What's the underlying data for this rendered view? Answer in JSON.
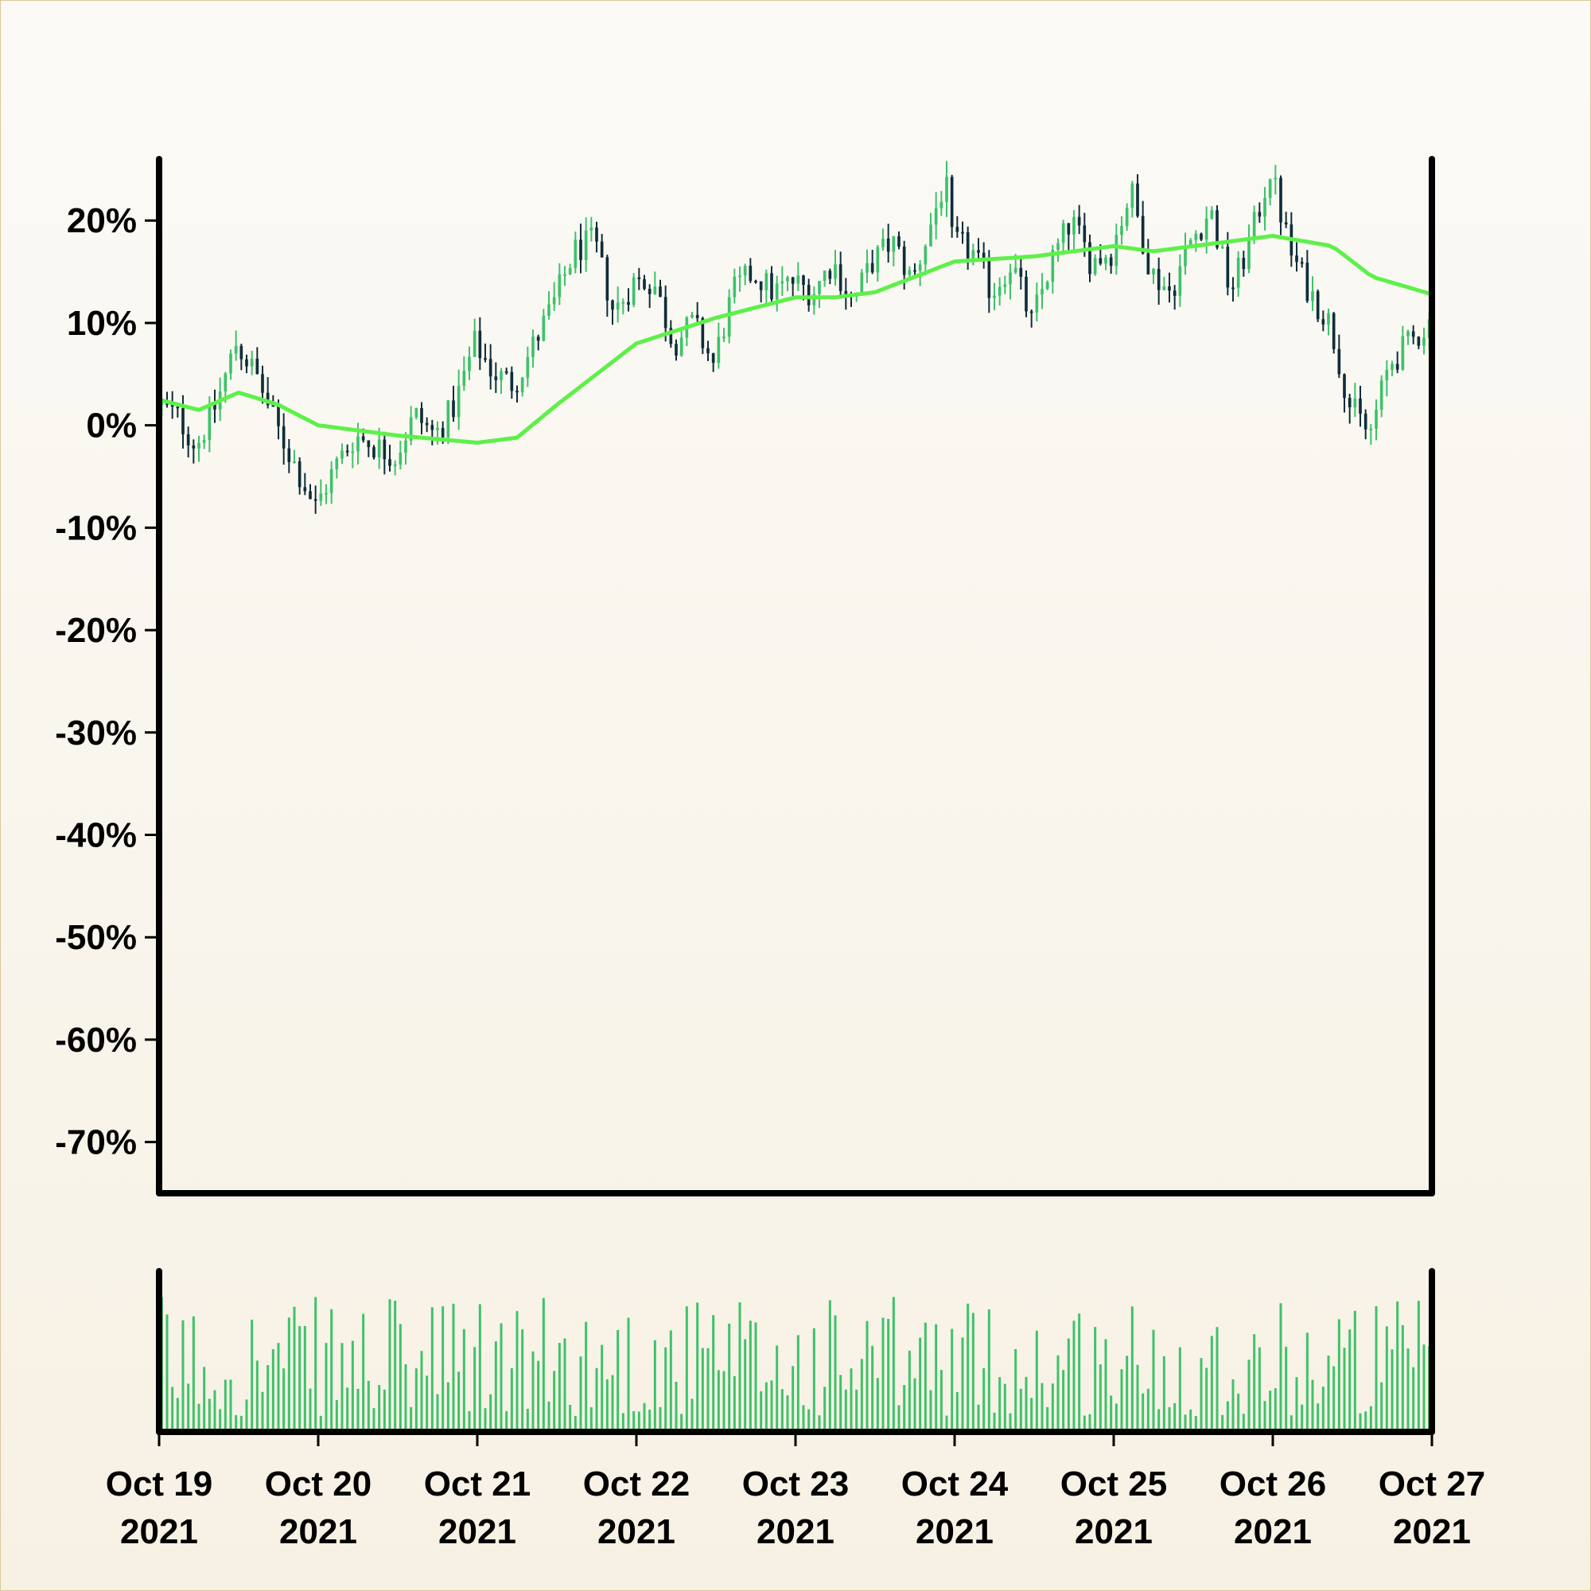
{
  "chart_data": {
    "type": "candlestick",
    "title": "",
    "xlabel": "",
    "ylabel": "",
    "ylim": [
      -75,
      26
    ],
    "y_ticks": [
      20,
      10,
      0,
      -10,
      -20,
      -30,
      -40,
      -50,
      -60,
      -70
    ],
    "y_tick_labels": [
      "20%",
      "10%",
      "0%",
      "-10%",
      "-20%",
      "-30%",
      "-40%",
      "-50%",
      "-60%",
      "-70%"
    ],
    "x_range": [
      "2021-10-19",
      "2021-10-27"
    ],
    "x_ticks": [
      {
        "date": "2021-10-19",
        "label_line1": "Oct 19",
        "label_line2": "2021"
      },
      {
        "date": "2021-10-20",
        "label_line1": "Oct 20",
        "label_line2": "2021"
      },
      {
        "date": "2021-10-21",
        "label_line1": "Oct 21",
        "label_line2": "2021"
      },
      {
        "date": "2021-10-22",
        "label_line1": "Oct 22",
        "label_line2": "2021"
      },
      {
        "date": "2021-10-23",
        "label_line1": "Oct 23",
        "label_line2": "2021"
      },
      {
        "date": "2021-10-24",
        "label_line1": "Oct 24",
        "label_line2": "2021"
      },
      {
        "date": "2021-10-25",
        "label_line1": "Oct 25",
        "label_line2": "2021"
      },
      {
        "date": "2021-10-26",
        "label_line1": "Oct 26",
        "label_line2": "2021"
      },
      {
        "date": "2021-10-27",
        "label_line1": "Oct 27",
        "label_line2": "2021"
      }
    ],
    "candles_close_path_approx": [
      [
        "2021-10-19 00:00",
        2
      ],
      [
        "2021-10-19 03:00",
        1
      ],
      [
        "2021-10-19 06:00",
        -2
      ],
      [
        "2021-10-19 09:00",
        2
      ],
      [
        "2021-10-19 12:00",
        8
      ],
      [
        "2021-10-19 15:00",
        5
      ],
      [
        "2021-10-19 18:00",
        0
      ],
      [
        "2021-10-19 21:00",
        -4
      ],
      [
        "2021-10-20 00:00",
        -8
      ],
      [
        "2021-10-20 03:00",
        -4
      ],
      [
        "2021-10-20 06:00",
        -1
      ],
      [
        "2021-10-20 09:00",
        -2
      ],
      [
        "2021-10-20 12:00",
        -3
      ],
      [
        "2021-10-20 15:00",
        1
      ],
      [
        "2021-10-20 18:00",
        -1
      ],
      [
        "2021-10-20 21:00",
        2
      ],
      [
        "2021-10-21 00:00",
        8
      ],
      [
        "2021-10-21 03:00",
        5
      ],
      [
        "2021-10-21 06:00",
        4
      ],
      [
        "2021-10-21 09:00",
        8
      ],
      [
        "2021-10-21 12:00",
        12
      ],
      [
        "2021-10-21 15:00",
        17
      ],
      [
        "2021-10-21 18:00",
        18
      ],
      [
        "2021-10-21 21:00",
        11
      ],
      [
        "2021-10-22 00:00",
        14
      ],
      [
        "2021-10-22 03:00",
        14
      ],
      [
        "2021-10-22 06:00",
        8
      ],
      [
        "2021-10-22 09:00",
        10
      ],
      [
        "2021-10-22 12:00",
        6
      ],
      [
        "2021-10-22 15:00",
        13
      ],
      [
        "2021-10-22 18:00",
        15
      ],
      [
        "2021-10-22 21:00",
        13
      ],
      [
        "2021-10-23 00:00",
        14
      ],
      [
        "2021-10-23 03:00",
        13
      ],
      [
        "2021-10-23 06:00",
        16
      ],
      [
        "2021-10-23 09:00",
        12
      ],
      [
        "2021-10-23 12:00",
        16
      ],
      [
        "2021-10-23 15:00",
        18
      ],
      [
        "2021-10-23 18:00",
        14
      ],
      [
        "2021-10-23 21:00",
        20
      ],
      [
        "2021-10-23 23:00",
        24
      ],
      [
        "2021-10-24 00:00",
        18
      ],
      [
        "2021-10-24 03:00",
        17
      ],
      [
        "2021-10-24 06:00",
        13
      ],
      [
        "2021-10-24 09:00",
        16
      ],
      [
        "2021-10-24 12:00",
        10
      ],
      [
        "2021-10-24 15:00",
        16
      ],
      [
        "2021-10-24 18:00",
        20
      ],
      [
        "2021-10-24 21:00",
        16
      ],
      [
        "2021-10-25 00:00",
        17
      ],
      [
        "2021-10-25 03:00",
        23
      ],
      [
        "2021-10-25 06:00",
        15
      ],
      [
        "2021-10-25 09:00",
        13
      ],
      [
        "2021-10-25 12:00",
        18
      ],
      [
        "2021-10-25 15:00",
        21
      ],
      [
        "2021-10-25 18:00",
        13
      ],
      [
        "2021-10-25 21:00",
        18
      ],
      [
        "2021-10-26 00:00",
        25
      ],
      [
        "2021-10-26 03:00",
        17
      ],
      [
        "2021-10-26 06:00",
        13
      ],
      [
        "2021-10-26 09:00",
        10
      ],
      [
        "2021-10-26 12:00",
        2
      ],
      [
        "2021-10-26 15:00",
        -1
      ],
      [
        "2021-10-26 18:00",
        6
      ],
      [
        "2021-10-26 21:00",
        8
      ],
      [
        "2021-10-27 00:00",
        10
      ]
    ],
    "moving_average_approx": [
      [
        "2021-10-19 00:00",
        2.5
      ],
      [
        "2021-10-19 06:00",
        1.5
      ],
      [
        "2021-10-19 12:00",
        3.2
      ],
      [
        "2021-10-19 18:00",
        2.0
      ],
      [
        "2021-10-20 00:00",
        0
      ],
      [
        "2021-10-20 12:00",
        -1.0
      ],
      [
        "2021-10-21 00:00",
        -1.7
      ],
      [
        "2021-10-21 06:00",
        -1.2
      ],
      [
        "2021-10-21 12:00",
        2.0
      ],
      [
        "2021-10-21 18:00",
        5.0
      ],
      [
        "2021-10-22 00:00",
        8.0
      ],
      [
        "2021-10-22 12:00",
        10.5
      ],
      [
        "2021-10-23 00:00",
        12.5
      ],
      [
        "2021-10-23 06:00",
        12.5
      ],
      [
        "2021-10-23 12:00",
        13.0
      ],
      [
        "2021-10-24 00:00",
        16.0
      ],
      [
        "2021-10-24 12:00",
        16.5
      ],
      [
        "2021-10-25 00:00",
        17.5
      ],
      [
        "2021-10-25 06:00",
        17.0
      ],
      [
        "2021-10-25 12:00",
        17.5
      ],
      [
        "2021-10-26 00:00",
        18.5
      ],
      [
        "2021-10-26 09:00",
        17.5
      ],
      [
        "2021-10-26 15:00",
        14.5
      ],
      [
        "2021-10-27 00:00",
        12.8
      ]
    ],
    "volume": {
      "shown": true,
      "color": "#3ec26a"
    },
    "grid": false,
    "legend": "none",
    "colors": {
      "up": "#3ec26a",
      "down": "#0f2d3a",
      "moving_average": "#5ef04a",
      "axis": "#000000",
      "background_top": "#fbfaf6",
      "background_bottom": "#f7f1e4"
    }
  }
}
